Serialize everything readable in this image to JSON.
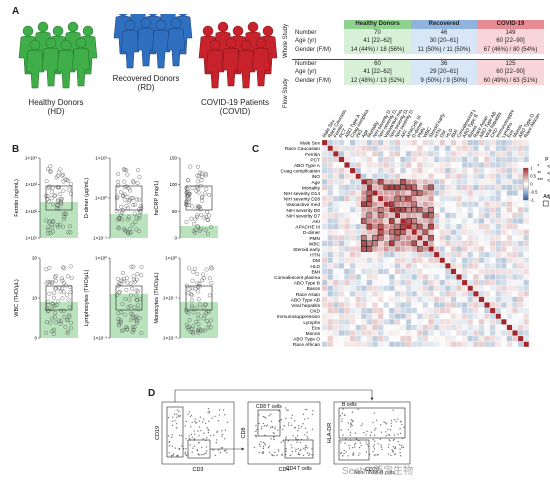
{
  "panels": {
    "a": "A",
    "b": "B",
    "c": "C",
    "d": "D"
  },
  "cohorts": {
    "hd": {
      "title": "Healthy Donors",
      "abbr": "(HD)",
      "color": "#3fae49"
    },
    "rd": {
      "title": "Recovered Donors",
      "abbr": "(RD)",
      "color": "#2f6fc0"
    },
    "covid": {
      "title": "COVID-19 Patients",
      "abbr": "(COVID)",
      "color": "#c8232c"
    }
  },
  "table": {
    "headers": [
      "Healthy Donors",
      "Recovered",
      "COVID-19"
    ],
    "whole_study": {
      "label": "Whole Study",
      "rows": [
        {
          "label": "Number",
          "vals": [
            "70",
            "46",
            "149"
          ]
        },
        {
          "label": "Age (yr)",
          "vals": [
            "41 [22–62]",
            "30 [20–61]",
            "60 [22–90]"
          ]
        },
        {
          "label": "Gender (F/M)",
          "vals": [
            "14 (44%) / 18 (56%)",
            "11 (50%) / 11 (50%)",
            "67 (46%) / 80 (54%)"
          ]
        }
      ]
    },
    "flow_study": {
      "label": "Flow Study",
      "rows": [
        {
          "label": "Number",
          "vals": [
            "60",
            "36",
            "125"
          ]
        },
        {
          "label": "Age (yr)",
          "vals": [
            "41 [22–62]",
            "29 [20–61]",
            "60 [22–90]"
          ]
        },
        {
          "label": "Gender (F/M)",
          "vals": [
            "12 (48%) / 13 (52%)",
            "9 (50%) / 9 (50%)",
            "60 (49%) / 63 (51%)"
          ]
        }
      ]
    }
  },
  "plots_b": [
    {
      "ylabel": "Ferritin (ng/mL)",
      "ticks": [
        "1×10⁴",
        "1×10³",
        "1×10²",
        "1×10¹"
      ]
    },
    {
      "ylabel": "D-dimer (μg/mL)",
      "ticks": [
        "1×10¹",
        "1×10⁰",
        "1×10⁻¹"
      ]
    },
    {
      "ylabel": "hsCRP (mg/L)",
      "ticks": [
        "150",
        "100",
        "50",
        "0"
      ]
    },
    {
      "ylabel": "WBC (THO/μL)",
      "ticks": [
        "20",
        "10",
        "0"
      ]
    },
    {
      "ylabel": "Lymphocytes (THO/μL)",
      "ticks": [
        "1×10⁰",
        "1×10⁻¹"
      ]
    },
    {
      "ylabel": "Monocytes (THO/μL)",
      "ticks": [
        "1×10⁰",
        "1×10⁻¹",
        "1×10⁻²"
      ]
    }
  ],
  "corr": {
    "variables": [
      "Male Sex",
      "Race Caucasian",
      "Ferritin",
      "PCT",
      "ABO Type A",
      "Coag complication",
      "iNO",
      "Age",
      "Mortality",
      "NIH severity D14",
      "NIH severity D28",
      "Vasoactive med",
      "NIH severity D0",
      "NIH severity D7",
      "AKI",
      "APACHE III",
      "D-dimer",
      "PMN",
      "WBC",
      "Steroid early",
      "HTN",
      "DM",
      "HLD",
      "BMI",
      "Convalescent plasma",
      "ABO Type B",
      "Basos",
      "Race Asian",
      "ABO Type AB",
      "Viral hepatitis",
      "CKD",
      "Immunosuppression",
      "Lymphs",
      "Eos",
      "Monos",
      "ABO Type O",
      "Race African"
    ],
    "legend_title": "p values",
    "legend_items": [
      "< 0.05",
      "< 0.01",
      "< 0.001"
    ],
    "legend_markers": [
      "*",
      "**",
      "***"
    ],
    "fdr_label": "Adjusted FDR",
    "fdr_item": "< 0.05",
    "scale_ticks": [
      "1",
      "0.5",
      "0",
      "-0.5",
      "-1"
    ],
    "pos_color": "#a3262a",
    "neg_color": "#2c5f97"
  },
  "flow": {
    "p1": {
      "xlabel": "CD3",
      "ylabel": "CD19"
    },
    "p2": {
      "xlabel": "CD4",
      "ylabel": "CD8",
      "gate1": "CD8 T cells",
      "gate2": "CD4 T cells"
    },
    "p3": {
      "xlabel": "CD20",
      "ylabel": "HLA-DR",
      "gate1": "B cells",
      "gate2": "Non-T/Non-B cells"
    }
  },
  "watermark": "Seebio西宝生物"
}
